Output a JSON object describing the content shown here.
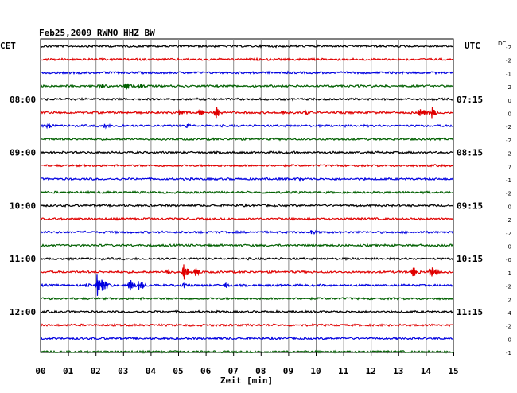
{
  "chart_data": {
    "type": "line",
    "title": "Feb25,2009   RWMO HHZ BW",
    "left_zone_label": "CET",
    "right_zone_label": "UTC",
    "dc_label": "DC",
    "xlabel": "Zeit [min]",
    "xlim": [
      0,
      15
    ],
    "x_ticks": [
      "00",
      "01",
      "02",
      "03",
      "04",
      "05",
      "06",
      "07",
      "08",
      "09",
      "10",
      "11",
      "12",
      "13",
      "14",
      "15"
    ],
    "left_time_labels": [
      {
        "row": 4,
        "label": "08:00"
      },
      {
        "row": 8,
        "label": "09:00"
      },
      {
        "row": 12,
        "label": "10:00"
      },
      {
        "row": 16,
        "label": "11:00"
      },
      {
        "row": 20,
        "label": "12:00"
      }
    ],
    "right_time_labels": [
      {
        "row": 4,
        "label": "07:15"
      },
      {
        "row": 8,
        "label": "08:15"
      },
      {
        "row": 12,
        "label": "09:15"
      },
      {
        "row": 16,
        "label": "10:15"
      },
      {
        "row": 20,
        "label": "11:15"
      }
    ],
    "dc_offsets": [
      "-2",
      "-2",
      "-1",
      "2",
      "0",
      "0",
      "-2",
      "-2",
      "-2",
      "7",
      "-1",
      "-2",
      "0",
      "-2",
      "-2",
      "-0",
      "-0",
      "1",
      "-2",
      "2",
      "4",
      "-2",
      "-0",
      "-1"
    ],
    "trace_colors": [
      "#000000",
      "#e00000",
      "#0000e0",
      "#006000"
    ],
    "grid": true,
    "events": [
      {
        "row": 3,
        "minute": 2.2,
        "amp": 3
      },
      {
        "row": 3,
        "minute": 3.1,
        "amp": 5
      },
      {
        "row": 3,
        "minute": 3.6,
        "amp": 3
      },
      {
        "row": 5,
        "minute": 5.1,
        "amp": 4
      },
      {
        "row": 5,
        "minute": 5.8,
        "amp": 5
      },
      {
        "row": 5,
        "minute": 6.35,
        "amp": 8
      },
      {
        "row": 5,
        "minute": 8.8,
        "amp": 3
      },
      {
        "row": 5,
        "minute": 9.6,
        "amp": 3
      },
      {
        "row": 5,
        "minute": 13.8,
        "amp": 7
      },
      {
        "row": 5,
        "minute": 14.2,
        "amp": 8
      },
      {
        "row": 6,
        "minute": 0.3,
        "amp": 3
      },
      {
        "row": 6,
        "minute": 2.3,
        "amp": 3
      },
      {
        "row": 6,
        "minute": 2.9,
        "amp": 2
      },
      {
        "row": 6,
        "minute": 5.3,
        "amp": 3
      },
      {
        "row": 14,
        "minute": 9.8,
        "amp": 3
      },
      {
        "row": 10,
        "minute": 9.4,
        "amp": 2
      },
      {
        "row": 17,
        "minute": 5.2,
        "amp": 11
      },
      {
        "row": 17,
        "minute": 5.6,
        "amp": 8
      },
      {
        "row": 17,
        "minute": 13.5,
        "amp": 11
      },
      {
        "row": 17,
        "minute": 14.2,
        "amp": 11
      },
      {
        "row": 17,
        "minute": 4.6,
        "amp": 3
      },
      {
        "row": 18,
        "minute": 2.05,
        "amp": 13
      },
      {
        "row": 18,
        "minute": 2.3,
        "amp": 9
      },
      {
        "row": 18,
        "minute": 3.25,
        "amp": 11
      },
      {
        "row": 18,
        "minute": 3.6,
        "amp": 9
      },
      {
        "row": 18,
        "minute": 1.6,
        "amp": 3
      },
      {
        "row": 18,
        "minute": 6.7,
        "amp": 3
      },
      {
        "row": 18,
        "minute": 5.2,
        "amp": 3
      }
    ]
  }
}
